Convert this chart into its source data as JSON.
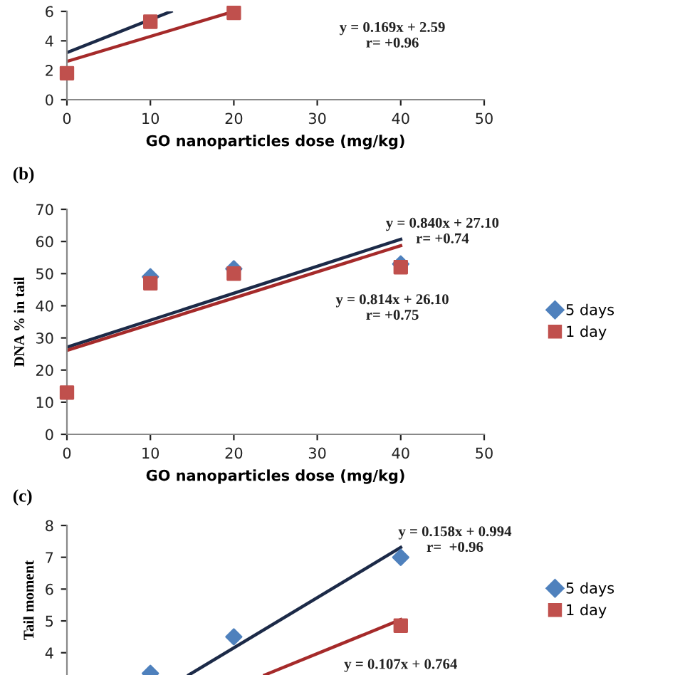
{
  "chart_data": [
    {
      "type": "scatter",
      "xlabel": "GO nanoparticles dose (mg/kg)",
      "xlim": [
        0,
        50
      ],
      "xticks": [
        0,
        10,
        20,
        30,
        40,
        50
      ],
      "ylim": [
        0,
        6
      ],
      "yticks": [
        0,
        2,
        4,
        6
      ],
      "grid": false,
      "legend": false,
      "series": [
        {
          "type": "line",
          "color": "#1c2a48",
          "x": [
            0,
            12.5
          ],
          "values": [
            3.2,
            6.0
          ],
          "marker": "none"
        },
        {
          "type": "line",
          "color": "#a52a2a",
          "x": [
            0,
            20
          ],
          "values": [
            2.6,
            6.0
          ],
          "marker": "none"
        },
        {
          "color": "#c0504d",
          "marker": "square",
          "x": [
            0,
            10,
            20
          ],
          "values": [
            1.8,
            5.3,
            5.9
          ]
        }
      ],
      "annotations": [
        "y = 0.169x + 2.59\nr= +0.96"
      ]
    },
    {
      "type": "scatter",
      "title": "(b)",
      "xlabel": "GO nanoparticles dose (mg/kg)",
      "ylabel": "DNA % in tail",
      "xlim": [
        0,
        50
      ],
      "xticks": [
        0,
        10,
        20,
        30,
        40,
        50
      ],
      "ylim": [
        0,
        70
      ],
      "yticks": [
        0,
        10,
        20,
        30,
        40,
        50,
        60,
        70
      ],
      "grid": false,
      "legend": "right",
      "series": [
        {
          "type": "line",
          "color": "#1c2a48",
          "x": [
            0,
            40
          ],
          "values": [
            27.1,
            60.7
          ],
          "marker": "none"
        },
        {
          "type": "line",
          "color": "#a52a2a",
          "x": [
            0,
            40
          ],
          "values": [
            26.1,
            58.7
          ],
          "marker": "none"
        },
        {
          "name": "5 days",
          "color": "#4f81bd",
          "marker": "diamond",
          "x": [
            10,
            20,
            40
          ],
          "values": [
            49,
            51.5,
            53
          ]
        },
        {
          "name": "1 day",
          "color": "#c0504d",
          "marker": "square",
          "x": [
            0,
            10,
            20,
            40
          ],
          "values": [
            13,
            47,
            50,
            52
          ]
        }
      ],
      "annotations": [
        "y = 0.840x + 27.10\nr= +0.74",
        "y = 0.814x + 26.10\nr= +0.75"
      ]
    },
    {
      "type": "scatter",
      "title": "(c)",
      "ylabel": "Tail moment",
      "tick_labels": "y",
      "xlim": [
        0,
        50
      ],
      "ylim": [
        3.3,
        8
      ],
      "yticks": [
        4,
        5,
        6,
        7,
        8
      ],
      "grid": false,
      "legend": "right",
      "series": [
        {
          "type": "line",
          "color": "#1c2a48",
          "x": [
            14.6,
            40
          ],
          "values": [
            3.3,
            7.31
          ],
          "marker": "none"
        },
        {
          "type": "line",
          "color": "#a52a2a",
          "x": [
            23.7,
            40
          ],
          "values": [
            3.3,
            5.04
          ],
          "marker": "none"
        },
        {
          "name": "5 days",
          "color": "#4f81bd",
          "marker": "diamond",
          "x": [
            10,
            20,
            40
          ],
          "values": [
            3.35,
            4.5,
            7.0
          ]
        },
        {
          "name": "1 day",
          "color": "#c0504d",
          "marker": "square",
          "x": [
            40
          ],
          "values": [
            4.85
          ]
        }
      ],
      "annotations": [
        "y = 0.158x + 0.994\nr=  +0.96",
        "y = 0.107x + 0.764"
      ]
    }
  ]
}
